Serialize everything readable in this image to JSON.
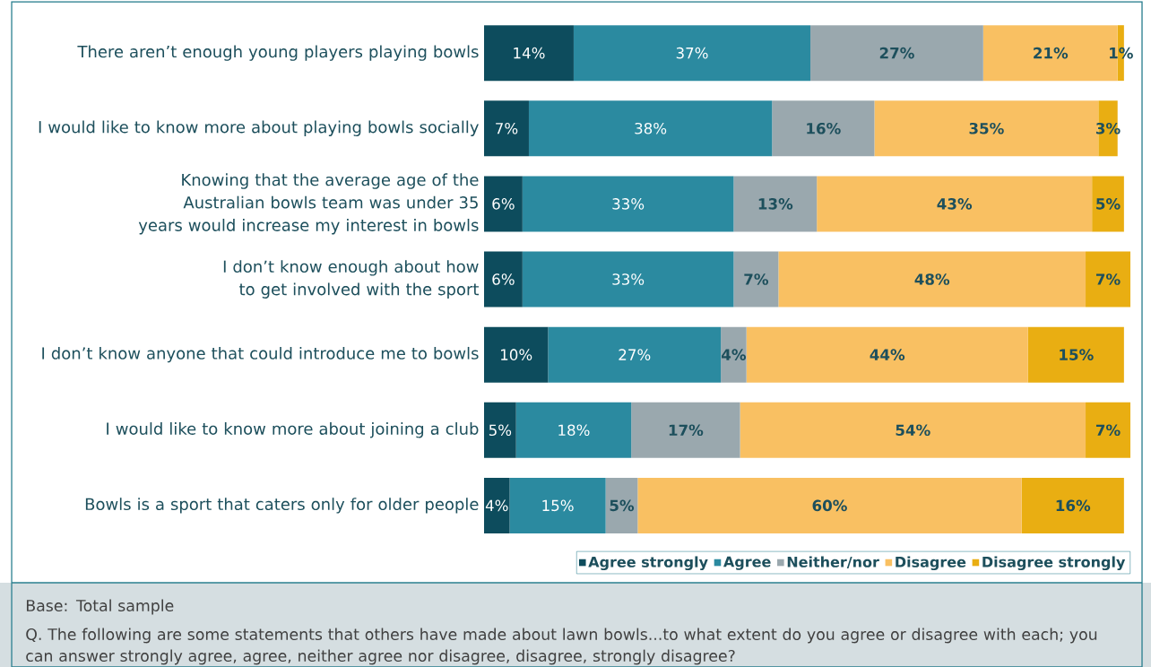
{
  "chart_data": {
    "type": "bar",
    "orientation": "horizontal",
    "stacked": true,
    "categories": [
      "There aren’t enough young players playing bowls",
      "I would like to know more about playing bowls socially",
      "Knowing that the average age of the Australian bowls team was under 35 years would increase my interest in bowls",
      "I don’t know enough about how to get involved with the sport",
      "I don’t know anyone that could introduce me to bowls",
      "I would like to know more about joining a club",
      "Bowls is a sport that caters only for older people"
    ],
    "series": [
      {
        "name": "Agree strongly",
        "color": "#0d4c5d",
        "values": [
          14,
          7,
          6,
          6,
          10,
          5,
          4
        ],
        "value_labels": [
          "14%",
          "7%",
          "6%",
          "6%",
          "10%",
          "5%",
          "4%"
        ]
      },
      {
        "name": "Agree",
        "color": "#2b8aa0",
        "values": [
          37,
          38,
          33,
          33,
          27,
          18,
          15
        ],
        "value_labels": [
          "37%",
          "38%",
          "33%",
          "33%",
          "27%",
          "18%",
          "15%"
        ]
      },
      {
        "name": "Neither/nor",
        "color": "#9aa8ae",
        "values": [
          27,
          16,
          13,
          7,
          4,
          17,
          5
        ],
        "value_labels": [
          "27%",
          "16%",
          "13%",
          "7%",
          "4%",
          "17%",
          "5%"
        ]
      },
      {
        "name": "Disagree",
        "color": "#f9c062",
        "values": [
          21,
          35,
          43,
          48,
          44,
          54,
          60
        ],
        "value_labels": [
          "21%",
          "35%",
          "43%",
          "48%",
          "44%",
          "54%",
          "60%"
        ]
      },
      {
        "name": "Disagree strongly",
        "color": "#e9ae12",
        "values": [
          1,
          3,
          5,
          7,
          15,
          7,
          16
        ],
        "value_labels": [
          "1%",
          "3%",
          "5%",
          "7%",
          "15%",
          "7%",
          "16%"
        ]
      }
    ],
    "legend": "bottom right",
    "annotations": [
      "Base: Total sample",
      "Q.  The following are some statements that others have made about lawn bowls...to what extent do you agree or disagree with each; you can answer strongly agree, agree, neither agree nor disagree, disagree, strongly disagree?"
    ]
  }
}
